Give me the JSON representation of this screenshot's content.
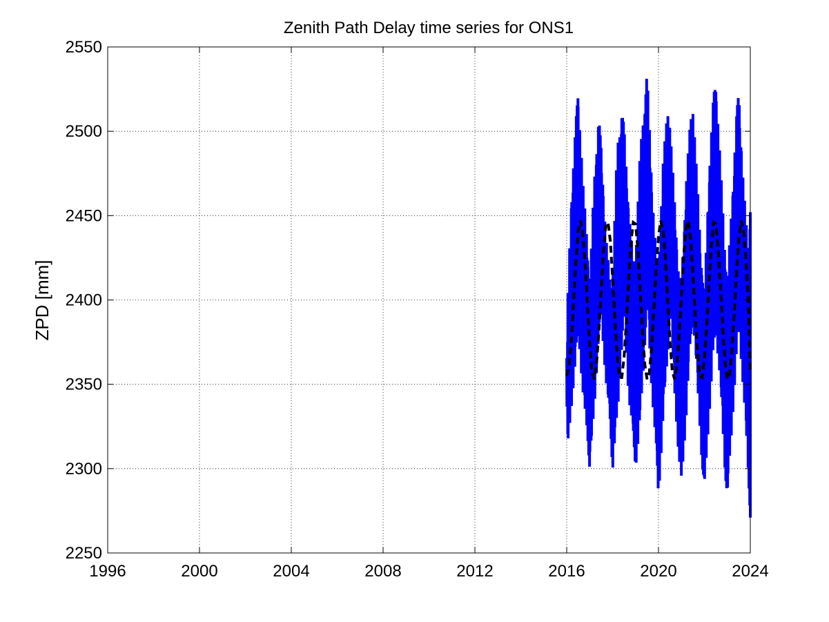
{
  "chart_data": {
    "type": "line",
    "title": "Zenith Path Delay time series for ONS1",
    "xlabel": "",
    "ylabel": "ZPD [mm]",
    "xlim": [
      1996,
      2024
    ],
    "ylim": [
      2250,
      2550
    ],
    "x_ticks": [
      "1996",
      "2000",
      "2004",
      "2008",
      "2012",
      "2016",
      "2020",
      "2024"
    ],
    "y_ticks": [
      "2250",
      "2300",
      "2350",
      "2400",
      "2450",
      "2500",
      "2550"
    ],
    "grid": true,
    "legend": "none",
    "series": [
      {
        "style": "solid",
        "color": "#0000ff",
        "x": [
          2016.0,
          2016.2,
          2016.4,
          2016.5,
          2016.7,
          2016.9,
          2017.0,
          2017.2,
          2017.4,
          2017.5,
          2017.7,
          2017.9,
          2018.0,
          2018.2,
          2018.4,
          2018.5,
          2018.7,
          2018.9,
          2019.0,
          2019.2,
          2019.4,
          2019.5,
          2019.7,
          2019.9,
          2020.0,
          2020.2,
          2020.4,
          2020.5,
          2020.7,
          2020.9,
          2021.0,
          2021.2,
          2021.4,
          2021.5,
          2021.7,
          2021.9,
          2022.0,
          2022.2,
          2022.4,
          2022.5,
          2022.7,
          2022.9,
          2023.0,
          2023.2,
          2023.4,
          2023.5,
          2023.7,
          2023.9,
          2024.0
        ],
        "y_min": [
          2305,
          2336,
          2362,
          2385,
          2340,
          2322,
          2297,
          2335,
          2378,
          2392,
          2352,
          2326,
          2298,
          2327,
          2372,
          2394,
          2342,
          2318,
          2300,
          2324,
          2372,
          2398,
          2348,
          2311,
          2283,
          2326,
          2366,
          2396,
          2345,
          2303,
          2292,
          2328,
          2374,
          2390,
          2347,
          2302,
          2286,
          2330,
          2368,
          2382,
          2346,
          2298,
          2281,
          2324,
          2366,
          2386,
          2344,
          2300,
          2271
        ],
        "y_max": [
          2383,
          2462,
          2505,
          2527,
          2471,
          2435,
          2405,
          2475,
          2508,
          2492,
          2440,
          2410,
          2410,
          2492,
          2513,
          2503,
          2457,
          2423,
          2427,
          2488,
          2518,
          2535,
          2475,
          2425,
          2422,
          2482,
          2515,
          2503,
          2460,
          2412,
          2414,
          2470,
          2508,
          2515,
          2468,
          2417,
          2402,
          2478,
          2521,
          2532,
          2480,
          2430,
          2410,
          2460,
          2510,
          2525,
          2470,
          2430,
          2452
        ]
      },
      {
        "style": "dashed",
        "color": "#000000",
        "x": [
          2016.0,
          2016.1,
          2016.2,
          2016.3,
          2016.4,
          2016.5,
          2016.6,
          2016.7,
          2016.8,
          2016.9,
          2017.0,
          2017.1,
          2017.2,
          2017.3,
          2017.4,
          2017.5,
          2017.6,
          2017.7,
          2017.8,
          2017.9,
          2018.0,
          2018.1,
          2018.2,
          2018.3,
          2018.4,
          2018.5,
          2018.6,
          2018.7,
          2018.8,
          2018.9,
          2019.0,
          2019.1,
          2019.2,
          2019.3,
          2019.4,
          2019.5,
          2019.6,
          2019.7,
          2019.8,
          2019.9,
          2020.0,
          2020.1,
          2020.2,
          2020.3,
          2020.4,
          2020.5,
          2020.6,
          2020.7,
          2020.8,
          2020.9,
          2021.0,
          2021.1,
          2021.2,
          2021.3,
          2021.4,
          2021.5,
          2021.6,
          2021.7,
          2021.8,
          2021.9,
          2022.0,
          2022.1,
          2022.2,
          2022.3,
          2022.4,
          2022.5,
          2022.6,
          2022.7,
          2022.8,
          2022.9,
          2023.0,
          2023.1,
          2023.2,
          2023.3,
          2023.4,
          2023.5,
          2023.6,
          2023.7,
          2023.8,
          2023.9,
          2024.0
        ],
        "y": [
          2355,
          2360,
          2376,
          2399,
          2423,
          2441,
          2447,
          2440,
          2422,
          2398,
          2374,
          2357,
          2353,
          2362,
          2381,
          2405,
          2428,
          2444,
          2446,
          2435,
          2413,
          2389,
          2367,
          2354,
          2354,
          2366,
          2387,
          2412,
          2434,
          2446,
          2445,
          2430,
          2406,
          2382,
          2362,
          2353,
          2357,
          2372,
          2395,
          2419,
          2438,
          2447,
          2441,
          2424,
          2400,
          2376,
          2358,
          2353,
          2361,
          2379,
          2403,
          2427,
          2443,
          2447,
          2436,
          2415,
          2391,
          2369,
          2355,
          2354,
          2365,
          2385,
          2410,
          2432,
          2446,
          2445,
          2431,
          2408,
          2384,
          2363,
          2353,
          2356,
          2370,
          2392,
          2417,
          2437,
          2447,
          2442,
          2426,
          2402,
          2358
        ]
      }
    ]
  }
}
